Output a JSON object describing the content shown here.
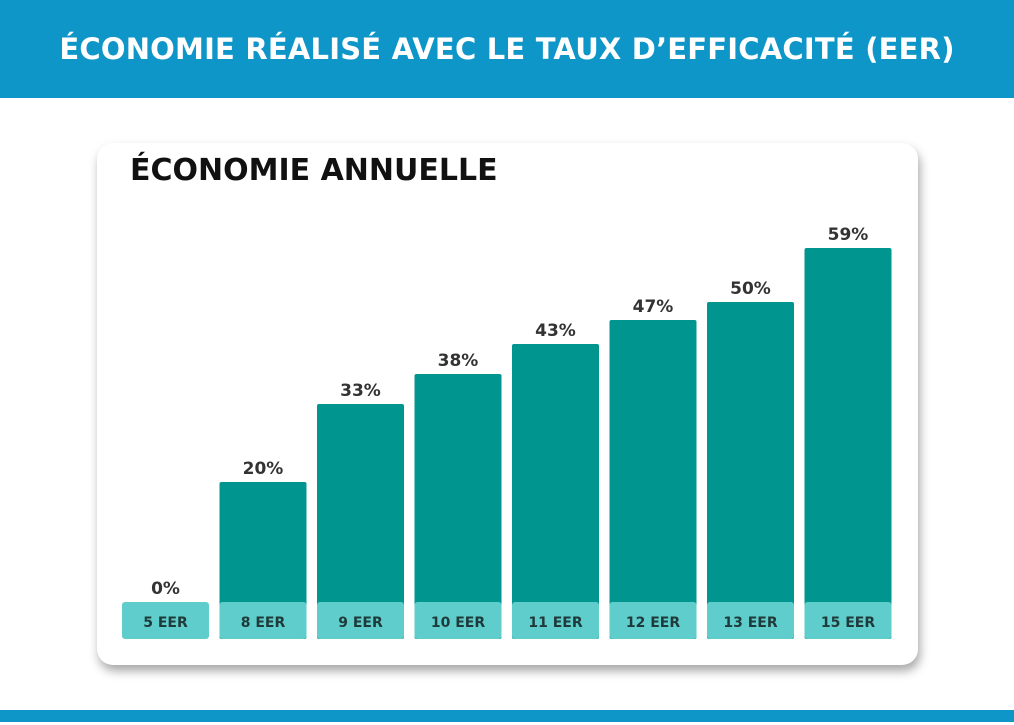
{
  "header": {
    "title": "ÉCONOMIE RÉALISÉ AVEC LE TAUX D’EFFICACITÉ (EER)"
  },
  "chart_data": {
    "type": "bar",
    "title": "ÉCONOMIE ANNUELLE",
    "categories": [
      "5 EER",
      "8 EER",
      "9 EER",
      "10 EER",
      "11 EER",
      "12 EER",
      "13 EER",
      "15 EER"
    ],
    "values": [
      0,
      20,
      33,
      38,
      43,
      47,
      50,
      59
    ],
    "data_labels": [
      "0%",
      "20%",
      "33%",
      "38%",
      "43%",
      "47%",
      "50%",
      "59%"
    ],
    "unit": "%",
    "grid": false,
    "legend": "none",
    "colors": {
      "bar": "#00958f",
      "category_box": "#5ecdcb",
      "header": "#0f96c9"
    }
  }
}
